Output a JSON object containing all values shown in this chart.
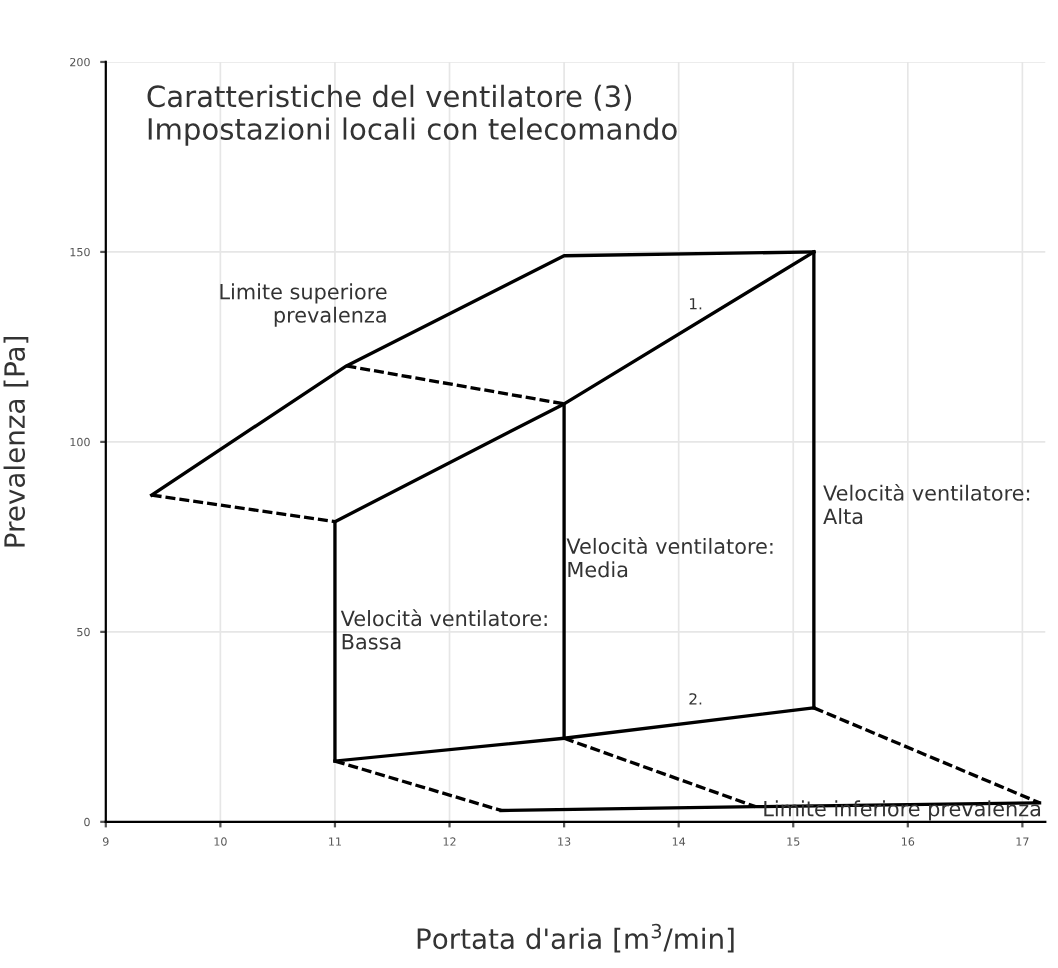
{
  "chart_data": {
    "type": "line",
    "title": "Caratteristiche del ventilatore (3)\nImpostazioni locali con telecomando",
    "xlabel": "Portata d'aria [m$^{3}$/min]",
    "ylabel": "Prevalenza [Pa]",
    "xlim": [
      9,
      17.2
    ],
    "ylim": [
      0,
      200
    ],
    "xticks": [
      9,
      10,
      11,
      12,
      13,
      14,
      15,
      16,
      17
    ],
    "yticks": [
      0,
      50,
      100,
      150,
      200
    ],
    "grid": true,
    "marker": "none",
    "series": [
      {
        "color": "#000000",
        "x": [
          9.4,
          11.1,
          13.0,
          15.18
        ],
        "values": [
          86,
          120,
          149,
          150
        ],
        "line_style": "solid"
      },
      {
        "color": "#000000",
        "x": [
          11.0,
          13.0,
          15.18
        ],
        "values": [
          79,
          110,
          150
        ],
        "line_style": "solid"
      },
      {
        "color": "#000000",
        "x": [
          9.4,
          11.0
        ],
        "values": [
          86,
          79
        ],
        "line_style": "dashed"
      },
      {
        "color": "#000000",
        "x": [
          11.1,
          13.0
        ],
        "values": [
          120,
          110
        ],
        "line_style": "dashed"
      },
      {
        "color": "#000000",
        "x": [
          11.0,
          11.0
        ],
        "values": [
          16,
          79
        ],
        "line_style": "solid"
      },
      {
        "color": "#000000",
        "x": [
          13.0,
          13.0
        ],
        "values": [
          22,
          110
        ],
        "line_style": "solid"
      },
      {
        "color": "#000000",
        "x": [
          15.18,
          15.18
        ],
        "values": [
          30,
          150
        ],
        "line_style": "solid"
      },
      {
        "color": "#000000",
        "x": [
          11.0,
          13.0,
          15.18
        ],
        "values": [
          16,
          22,
          30
        ],
        "line_style": "solid"
      },
      {
        "color": "#000000",
        "x": [
          11.0,
          12.45
        ],
        "values": [
          16,
          3
        ],
        "line_style": "dashed"
      },
      {
        "color": "#000000",
        "x": [
          13.0,
          14.67
        ],
        "values": [
          22,
          4
        ],
        "line_style": "dashed"
      },
      {
        "color": "#000000",
        "x": [
          15.18,
          17.15
        ],
        "values": [
          30,
          5
        ],
        "line_style": "dashed"
      },
      {
        "color": "#000000",
        "x": [
          12.45,
          14.67,
          17.15
        ],
        "values": [
          3,
          4,
          5
        ],
        "line_style": "solid"
      }
    ],
    "annotations": [
      "Limite superiore\nprevalenza",
      "1.",
      {
        "text": "Velocità ventilatore:\nBassa",
        "x": 11.05,
        "y": 50
      },
      {
        "text": "Velocità ventilatore:\nMedia",
        "x": 13.02,
        "y": 69
      },
      {
        "text": "Velocità ventilatore:\nAlta",
        "x": 15.26,
        "y": 83
      },
      "2.",
      {
        "text": "Limite inferiore prevalenza",
        "x": 14.73,
        "y": 3
      }
    ]
  }
}
